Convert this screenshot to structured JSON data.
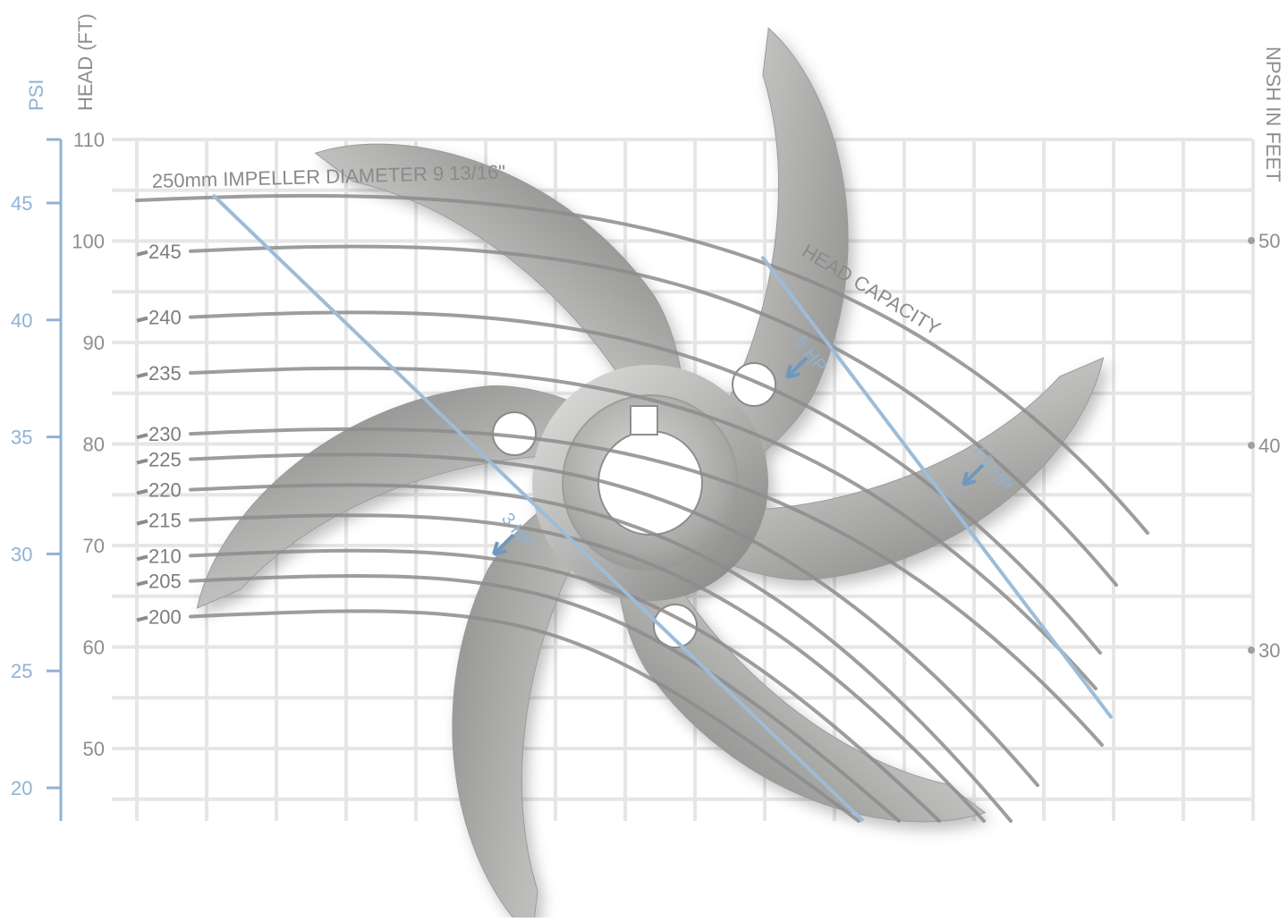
{
  "chart_data": {
    "type": "line",
    "axes": {
      "psi": {
        "label": "PSI",
        "ticks": [
          45,
          40,
          35,
          30,
          25,
          20
        ],
        "color": "#8fb3d4"
      },
      "head": {
        "label": "HEAD (FT)",
        "ticks": [
          110,
          100,
          90,
          80,
          70,
          60,
          50
        ],
        "range": [
          46,
          112
        ]
      },
      "npsh": {
        "label": "NPSH IN FEET",
        "ticks": [
          50,
          40,
          30
        ]
      }
    },
    "grid": true,
    "title": "250mm IMPELLER DIAMETER 9 13/16\"",
    "annotation": "HEAD CAPACITY",
    "series": [
      {
        "name": "250mm IMPELLER DIAMETER 9 13/16\"",
        "label": "250",
        "head_at_start": 104
      },
      {
        "name": "245",
        "label": "245",
        "head_at_start": 99
      },
      {
        "name": "240",
        "label": "240",
        "head_at_start": 92.5
      },
      {
        "name": "235",
        "label": "235",
        "head_at_start": 87
      },
      {
        "name": "230",
        "label": "230",
        "head_at_start": 81
      },
      {
        "name": "225",
        "label": "225",
        "head_at_start": 78.5
      },
      {
        "name": "220",
        "label": "220",
        "head_at_start": 75.5
      },
      {
        "name": "215",
        "label": "215",
        "head_at_start": 72.5
      },
      {
        "name": "210",
        "label": "210",
        "head_at_start": 69
      },
      {
        "name": "205",
        "label": "205",
        "head_at_start": 66.5
      },
      {
        "name": "200",
        "label": "200",
        "head_at_start": 63
      }
    ],
    "power_lines": [
      {
        "label": "3 HP"
      },
      {
        "label": "5 HP"
      },
      {
        "label": "7.5 HP"
      }
    ]
  },
  "colors": {
    "curve": "#8c8c8c",
    "grid": "#e6e6e6",
    "hp_line": "#9dbcd8",
    "metal_light": "#cfcfcd",
    "metal_dark": "#8f8f8d"
  }
}
